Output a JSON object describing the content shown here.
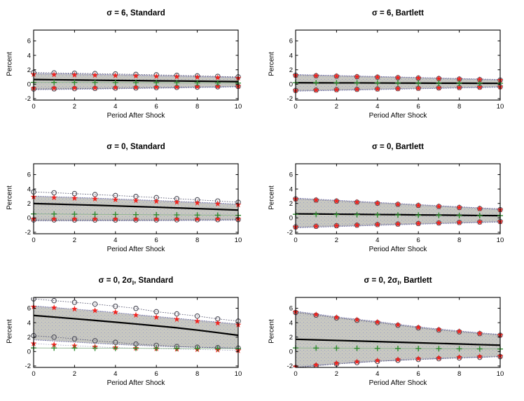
{
  "figure": {
    "background": "#ffffff"
  },
  "colors": {
    "band_fill": "#c8c8c1",
    "band_speckle": "#8f96c4",
    "band_edge_dotted": "#7a7ab0",
    "center_line": "#000000",
    "circle_marker": "#4d4d58",
    "circle_dotted_line": "#62627a",
    "star_marker": "#f2231e",
    "star_dotted_line": "#a4a4c0",
    "plus_marker": "#2e8b2e",
    "plus_line": "#8fb48f",
    "axis": "#000000"
  },
  "chart_data": [
    {
      "type": "line",
      "title": {
        "pre": "σ = 6, Standard",
        "sub": "",
        "post": ""
      },
      "xlabel": "Period After Shock",
      "ylabel": "Percent",
      "x": [
        0,
        1,
        2,
        3,
        4,
        5,
        6,
        7,
        8,
        9,
        10
      ],
      "xlim": [
        0,
        10
      ],
      "ylim": [
        -2.2,
        7.5
      ],
      "x_ticks": [
        0,
        2,
        4,
        6,
        8,
        10
      ],
      "y_ticks": [
        -2,
        0,
        2,
        4,
        6
      ],
      "grid": false,
      "legend": "none",
      "band": {
        "upper": [
          1.5,
          1.46,
          1.42,
          1.37,
          1.32,
          1.27,
          1.21,
          1.15,
          1.09,
          1.02,
          0.95
        ],
        "lower": [
          -0.76,
          -0.73,
          -0.7,
          -0.67,
          -0.63,
          -0.59,
          -0.55,
          -0.51,
          -0.46,
          -0.41,
          -0.36
        ]
      },
      "series": [
        {
          "name": "ci-circles-upper",
          "marker": "circle",
          "values": [
            1.62,
            1.57,
            1.52,
            1.47,
            1.42,
            1.36,
            1.3,
            1.23,
            1.16,
            1.09,
            1.01
          ]
        },
        {
          "name": "ci-circles-lower",
          "marker": "circle",
          "values": [
            -0.66,
            -0.64,
            -0.61,
            -0.58,
            -0.55,
            -0.52,
            -0.48,
            -0.44,
            -0.4,
            -0.36,
            -0.31
          ]
        },
        {
          "name": "ci-stars-upper",
          "marker": "star",
          "values": [
            1.36,
            1.32,
            1.28,
            1.24,
            1.19,
            1.14,
            1.09,
            1.04,
            0.98,
            0.92,
            0.86
          ]
        },
        {
          "name": "ci-stars-lower",
          "marker": "star",
          "values": [
            -0.56,
            -0.54,
            -0.52,
            -0.5,
            -0.47,
            -0.44,
            -0.41,
            -0.38,
            -0.35,
            -0.31,
            -0.27
          ]
        },
        {
          "name": "true-response",
          "marker": "plus",
          "values": [
            0.26,
            0.25,
            0.24,
            0.23,
            0.22,
            0.21,
            0.2,
            0.19,
            0.18,
            0.17,
            0.16
          ]
        },
        {
          "name": "point-estimate",
          "marker": "none",
          "values": [
            0.65,
            0.62,
            0.59,
            0.56,
            0.53,
            0.5,
            0.47,
            0.45,
            0.42,
            0.39,
            0.36
          ]
        }
      ]
    },
    {
      "type": "line",
      "title": {
        "pre": "σ = 6, Bartlett",
        "sub": "",
        "post": ""
      },
      "xlabel": "Period After Shock",
      "ylabel": "Percent",
      "x": [
        0,
        1,
        2,
        3,
        4,
        5,
        6,
        7,
        8,
        9,
        10
      ],
      "xlim": [
        0,
        10
      ],
      "ylim": [
        -2.2,
        7.5
      ],
      "x_ticks": [
        0,
        2,
        4,
        6,
        8,
        10
      ],
      "y_ticks": [
        -2,
        0,
        2,
        4,
        6
      ],
      "grid": false,
      "legend": "none",
      "band": {
        "upper": [
          1.34,
          1.27,
          1.2,
          1.13,
          1.07,
          1.0,
          0.93,
          0.86,
          0.79,
          0.72,
          0.65
        ],
        "lower": [
          -0.96,
          -0.91,
          -0.85,
          -0.8,
          -0.74,
          -0.69,
          -0.63,
          -0.58,
          -0.52,
          -0.47,
          -0.41
        ]
      },
      "series": [
        {
          "name": "ci-circles-upper",
          "marker": "circle",
          "values": [
            1.24,
            1.17,
            1.11,
            1.04,
            0.98,
            0.91,
            0.85,
            0.78,
            0.71,
            0.64,
            0.57
          ]
        },
        {
          "name": "ci-circles-lower",
          "marker": "circle",
          "values": [
            -0.86,
            -0.81,
            -0.76,
            -0.71,
            -0.66,
            -0.61,
            -0.56,
            -0.51,
            -0.46,
            -0.41,
            -0.36
          ]
        },
        {
          "name": "ci-stars-upper",
          "marker": "star",
          "values": [
            1.24,
            1.17,
            1.11,
            1.04,
            0.98,
            0.91,
            0.85,
            0.78,
            0.71,
            0.64,
            0.57
          ]
        },
        {
          "name": "ci-stars-lower",
          "marker": "star",
          "values": [
            -0.86,
            -0.81,
            -0.76,
            -0.71,
            -0.66,
            -0.61,
            -0.56,
            -0.51,
            -0.46,
            -0.41,
            -0.36
          ]
        },
        {
          "name": "true-response",
          "marker": "plus",
          "values": [
            0.21,
            0.2,
            0.19,
            0.18,
            0.18,
            0.17,
            0.16,
            0.15,
            0.14,
            0.13,
            0.12
          ]
        },
        {
          "name": "point-estimate",
          "marker": "none",
          "values": [
            0.2,
            0.19,
            0.18,
            0.18,
            0.17,
            0.16,
            0.15,
            0.14,
            0.14,
            0.13,
            0.12
          ]
        }
      ]
    },
    {
      "type": "line",
      "title": {
        "pre": "σ = 0, Standard",
        "sub": "",
        "post": ""
      },
      "xlabel": "Period After Shock",
      "ylabel": "Percent",
      "x": [
        0,
        1,
        2,
        3,
        4,
        5,
        6,
        7,
        8,
        9,
        10
      ],
      "xlim": [
        0,
        10
      ],
      "ylim": [
        -2.2,
        7.5
      ],
      "x_ticks": [
        0,
        2,
        4,
        6,
        8,
        10
      ],
      "y_ticks": [
        -2,
        0,
        2,
        4,
        6
      ],
      "grid": false,
      "legend": "none",
      "band": {
        "upper": [
          3.02,
          2.93,
          2.84,
          2.74,
          2.63,
          2.52,
          2.41,
          2.29,
          2.17,
          2.04,
          1.91
        ],
        "lower": [
          -0.42,
          -0.42,
          -0.42,
          -0.41,
          -0.41,
          -0.4,
          -0.39,
          -0.37,
          -0.35,
          -0.33,
          -0.31
        ]
      },
      "series": [
        {
          "name": "ci-circles-upper",
          "marker": "circle",
          "values": [
            3.6,
            3.48,
            3.36,
            3.23,
            3.1,
            2.96,
            2.81,
            2.66,
            2.5,
            2.34,
            2.17
          ]
        },
        {
          "name": "ci-circles-lower",
          "marker": "circle",
          "values": [
            -0.28,
            -0.28,
            -0.29,
            -0.29,
            -0.29,
            -0.28,
            -0.28,
            -0.27,
            -0.26,
            -0.25,
            -0.24
          ]
        },
        {
          "name": "ci-stars-upper",
          "marker": "star",
          "values": [
            2.9,
            2.81,
            2.72,
            2.62,
            2.52,
            2.41,
            2.3,
            2.18,
            2.06,
            1.94,
            1.81
          ]
        },
        {
          "name": "ci-stars-lower",
          "marker": "star",
          "values": [
            -0.15,
            -0.16,
            -0.16,
            -0.17,
            -0.17,
            -0.17,
            -0.17,
            -0.16,
            -0.16,
            -0.15,
            -0.14
          ]
        },
        {
          "name": "true-response",
          "marker": "plus",
          "values": [
            0.55,
            0.53,
            0.51,
            0.49,
            0.47,
            0.45,
            0.43,
            0.41,
            0.39,
            0.37,
            0.35
          ]
        },
        {
          "name": "point-estimate",
          "marker": "none",
          "values": [
            1.98,
            1.91,
            1.83,
            1.75,
            1.66,
            1.57,
            1.48,
            1.38,
            1.28,
            1.18,
            1.08
          ]
        }
      ]
    },
    {
      "type": "line",
      "title": {
        "pre": "σ = 0, Bartlett",
        "sub": "",
        "post": ""
      },
      "xlabel": "Period After Shock",
      "ylabel": "Percent",
      "x": [
        0,
        1,
        2,
        3,
        4,
        5,
        6,
        7,
        8,
        9,
        10
      ],
      "xlim": [
        0,
        10
      ],
      "ylim": [
        -2.2,
        7.5
      ],
      "x_ticks": [
        0,
        2,
        4,
        6,
        8,
        10
      ],
      "y_ticks": [
        -2,
        0,
        2,
        4,
        6
      ],
      "grid": false,
      "legend": "none",
      "band": {
        "upper": [
          2.74,
          2.59,
          2.44,
          2.29,
          2.14,
          1.99,
          1.84,
          1.69,
          1.54,
          1.39,
          1.25
        ],
        "lower": [
          -1.38,
          -1.29,
          -1.21,
          -1.12,
          -1.04,
          -0.96,
          -0.88,
          -0.8,
          -0.73,
          -0.65,
          -0.58
        ]
      },
      "series": [
        {
          "name": "ci-circles-upper",
          "marker": "circle",
          "values": [
            2.62,
            2.47,
            2.33,
            2.18,
            2.03,
            1.88,
            1.73,
            1.58,
            1.44,
            1.29,
            1.14
          ]
        },
        {
          "name": "ci-circles-lower",
          "marker": "circle",
          "values": [
            -1.26,
            -1.17,
            -1.09,
            -1.01,
            -0.93,
            -0.86,
            -0.78,
            -0.71,
            -0.64,
            -0.57,
            -0.5
          ]
        },
        {
          "name": "ci-stars-upper",
          "marker": "star",
          "values": [
            2.62,
            2.47,
            2.33,
            2.18,
            2.03,
            1.88,
            1.73,
            1.58,
            1.44,
            1.29,
            1.14
          ]
        },
        {
          "name": "ci-stars-lower",
          "marker": "star",
          "values": [
            -1.26,
            -1.17,
            -1.09,
            -1.01,
            -0.93,
            -0.86,
            -0.78,
            -0.71,
            -0.64,
            -0.57,
            -0.5
          ]
        },
        {
          "name": "true-response",
          "marker": "plus",
          "values": [
            0.5,
            0.48,
            0.46,
            0.44,
            0.42,
            0.4,
            0.38,
            0.36,
            0.34,
            0.32,
            0.3
          ]
        },
        {
          "name": "point-estimate",
          "marker": "none",
          "values": [
            0.56,
            0.54,
            0.51,
            0.49,
            0.46,
            0.44,
            0.41,
            0.39,
            0.36,
            0.33,
            0.31
          ]
        }
      ]
    },
    {
      "type": "line",
      "title": {
        "pre": "σ = 0, 2σ",
        "sub": "I",
        "post": ", Standard"
      },
      "xlabel": "Period After Shock",
      "ylabel": "Percent",
      "x": [
        0,
        1,
        2,
        3,
        4,
        5,
        6,
        7,
        8,
        9,
        10
      ],
      "xlim": [
        0,
        10
      ],
      "ylim": [
        -2.2,
        7.5
      ],
      "x_ticks": [
        0,
        2,
        4,
        6,
        8,
        10
      ],
      "y_ticks": [
        -2,
        0,
        2,
        4,
        6
      ],
      "grid": false,
      "legend": "none",
      "band": {
        "upper": [
          6.32,
          6.1,
          5.87,
          5.63,
          5.38,
          5.12,
          4.86,
          4.6,
          4.34,
          4.08,
          3.82
        ],
        "lower": [
          1.62,
          1.46,
          1.3,
          1.14,
          0.99,
          0.86,
          0.75,
          0.66,
          0.58,
          0.51,
          0.45
        ]
      },
      "series": [
        {
          "name": "ci-circles-upper",
          "marker": "circle",
          "values": [
            7.3,
            7.05,
            6.82,
            6.58,
            6.28,
            5.98,
            5.52,
            5.22,
            4.92,
            4.52,
            4.22
          ]
        },
        {
          "name": "ci-circles-lower",
          "marker": "circle",
          "values": [
            2.2,
            2.0,
            1.76,
            1.5,
            1.28,
            1.04,
            0.86,
            0.7,
            0.6,
            0.54,
            0.48
          ]
        },
        {
          "name": "ci-stars-upper",
          "marker": "star",
          "values": [
            6.2,
            6.08,
            5.9,
            5.68,
            5.45,
            5.05,
            4.75,
            4.47,
            4.2,
            3.95,
            3.7
          ]
        },
        {
          "name": "ci-stars-lower",
          "marker": "star",
          "values": [
            1.1,
            0.94,
            0.8,
            0.66,
            0.55,
            0.46,
            0.4,
            0.34,
            0.28,
            0.22,
            0.14
          ]
        },
        {
          "name": "true-response",
          "marker": "plus",
          "values": [
            0.5,
            0.49,
            0.48,
            0.47,
            0.46,
            0.45,
            0.44,
            0.43,
            0.42,
            0.41,
            0.4
          ]
        },
        {
          "name": "point-estimate",
          "marker": "none",
          "values": [
            5.0,
            4.78,
            4.55,
            4.31,
            4.07,
            3.82,
            3.56,
            3.29,
            2.97,
            2.62,
            2.25
          ]
        }
      ]
    },
    {
      "type": "line",
      "title": {
        "pre": "σ = 0, 2σ",
        "sub": "I",
        "post": ", Bartlett"
      },
      "xlabel": "Period After Shock",
      "ylabel": "Percent",
      "x": [
        0,
        1,
        2,
        3,
        4,
        5,
        6,
        7,
        8,
        9,
        10
      ],
      "xlim": [
        0,
        10
      ],
      "ylim": [
        -2.2,
        7.5
      ],
      "x_ticks": [
        0,
        2,
        4,
        6,
        8,
        10
      ],
      "y_ticks": [
        -2,
        0,
        2,
        4,
        6
      ],
      "grid": false,
      "legend": "none",
      "band": {
        "upper": [
          5.58,
          5.2,
          4.8,
          4.48,
          4.16,
          3.78,
          3.42,
          3.12,
          2.86,
          2.6,
          2.38
        ],
        "lower": [
          -2.2,
          -1.96,
          -1.72,
          -1.52,
          -1.36,
          -1.21,
          -1.09,
          -0.99,
          -0.89,
          -0.8,
          -0.71
        ]
      },
      "series": [
        {
          "name": "ci-circles-upper",
          "marker": "circle",
          "values": [
            5.42,
            5.04,
            4.65,
            4.33,
            4.01,
            3.64,
            3.28,
            2.99,
            2.73,
            2.48,
            2.26
          ]
        },
        {
          "name": "ci-circles-lower",
          "marker": "circle",
          "values": [
            -2.22,
            -1.97,
            -1.73,
            -1.53,
            -1.37,
            -1.22,
            -1.1,
            -0.99,
            -0.89,
            -0.8,
            -0.7
          ]
        },
        {
          "name": "ci-stars-upper",
          "marker": "star",
          "values": [
            5.5,
            5.12,
            4.72,
            4.4,
            4.08,
            3.7,
            3.34,
            3.04,
            2.78,
            2.52,
            2.3
          ]
        },
        {
          "name": "ci-stars-lower",
          "marker": "star",
          "values": [
            -2.1,
            -1.86,
            -1.62,
            -1.42,
            -1.26,
            -1.11,
            -0.99,
            -0.89,
            -0.79,
            -0.7,
            -0.61
          ]
        },
        {
          "name": "true-response",
          "marker": "plus",
          "values": [
            0.5,
            0.48,
            0.47,
            0.45,
            0.44,
            0.42,
            0.41,
            0.39,
            0.38,
            0.36,
            0.35
          ]
        },
        {
          "name": "point-estimate",
          "marker": "none",
          "values": [
            1.7,
            1.62,
            1.54,
            1.46,
            1.38,
            1.29,
            1.21,
            1.13,
            1.05,
            0.96,
            0.88
          ]
        }
      ]
    }
  ]
}
